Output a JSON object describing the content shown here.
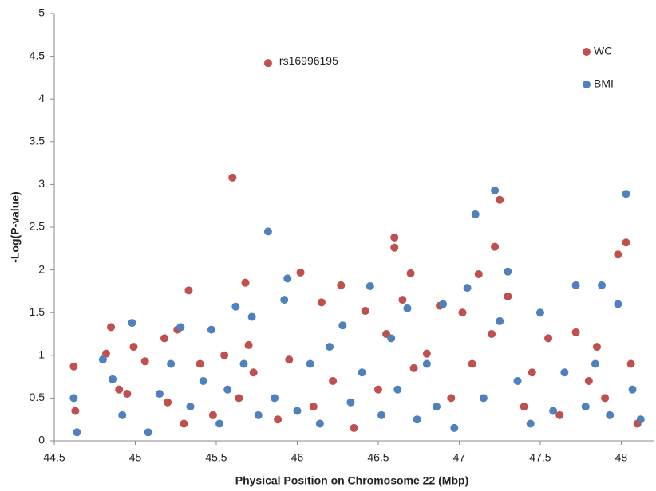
{
  "chart_data": {
    "type": "scatter",
    "x_label": "Physical Position on Chromosome 22 (Mbp)",
    "y_label": "-Log(P-value)",
    "annotation": "rs16996195",
    "xlim": [
      44.5,
      48.2
    ],
    "xticks": [
      44.5,
      45,
      45.5,
      46,
      46.5,
      47,
      47.5,
      48
    ],
    "ylim": [
      0,
      5
    ],
    "yticks": [
      0,
      0.5,
      1,
      1.5,
      2,
      2.5,
      3,
      3.5,
      4,
      4.5,
      5
    ],
    "legend": "upper right",
    "grid": false,
    "series": [
      {
        "name": "WC",
        "color": "#c0504d",
        "x": [
          44.62,
          44.63,
          44.82,
          44.85,
          44.9,
          44.95,
          44.99,
          45.06,
          45.18,
          45.2,
          45.26,
          45.3,
          45.33,
          45.4,
          45.48,
          45.55,
          45.6,
          45.64,
          45.68,
          45.7,
          45.73,
          45.82,
          45.88,
          45.95,
          46.02,
          46.1,
          46.15,
          46.22,
          46.27,
          46.35,
          46.42,
          46.5,
          46.55,
          46.6,
          46.6,
          46.65,
          46.7,
          46.72,
          46.8,
          46.88,
          46.95,
          47.02,
          47.08,
          47.12,
          47.2,
          47.22,
          47.25,
          47.3,
          47.4,
          47.45,
          47.55,
          47.62,
          47.72,
          47.8,
          47.85,
          47.9,
          47.98,
          48.03,
          48.06,
          48.1
        ],
        "values": [
          0.87,
          0.35,
          1.02,
          1.33,
          0.6,
          0.55,
          1.1,
          0.93,
          1.2,
          0.45,
          1.3,
          0.2,
          1.76,
          0.9,
          0.3,
          1.0,
          3.08,
          0.5,
          1.85,
          1.12,
          0.8,
          4.42,
          0.25,
          0.95,
          1.97,
          0.4,
          1.62,
          0.7,
          1.82,
          0.15,
          1.52,
          0.6,
          1.25,
          2.38,
          2.26,
          1.65,
          1.96,
          0.85,
          1.02,
          1.58,
          0.5,
          1.5,
          0.9,
          1.95,
          1.25,
          2.27,
          2.82,
          1.69,
          0.4,
          0.8,
          1.2,
          0.3,
          1.27,
          0.7,
          1.1,
          0.5,
          2.18,
          2.32,
          0.9,
          0.2
        ]
      },
      {
        "name": "BMI",
        "color": "#4f81bd",
        "x": [
          44.62,
          44.64,
          44.8,
          44.86,
          44.92,
          44.98,
          45.08,
          45.15,
          45.22,
          45.28,
          45.34,
          45.42,
          45.47,
          45.52,
          45.57,
          45.62,
          45.67,
          45.72,
          45.76,
          45.82,
          45.86,
          45.92,
          45.94,
          46.0,
          46.08,
          46.14,
          46.2,
          46.28,
          46.33,
          46.4,
          46.45,
          46.52,
          46.58,
          46.62,
          46.68,
          46.74,
          46.8,
          46.86,
          46.9,
          46.97,
          47.05,
          47.1,
          47.15,
          47.22,
          47.25,
          47.3,
          47.36,
          47.44,
          47.5,
          47.58,
          47.65,
          47.72,
          47.78,
          47.84,
          47.88,
          47.93,
          47.98,
          48.03,
          48.07,
          48.12
        ],
        "values": [
          0.5,
          0.1,
          0.95,
          0.72,
          0.3,
          1.38,
          0.1,
          0.55,
          0.9,
          1.33,
          0.4,
          0.7,
          1.3,
          0.2,
          0.6,
          1.57,
          0.9,
          1.45,
          0.3,
          2.45,
          0.5,
          1.65,
          1.9,
          0.35,
          0.9,
          0.2,
          1.1,
          1.35,
          0.45,
          0.8,
          1.81,
          0.3,
          1.2,
          0.6,
          1.55,
          0.25,
          0.9,
          0.4,
          1.6,
          0.15,
          1.79,
          2.65,
          0.5,
          2.93,
          1.4,
          1.98,
          0.7,
          0.2,
          1.5,
          0.35,
          0.8,
          1.82,
          0.4,
          0.9,
          1.82,
          0.3,
          1.6,
          2.89,
          0.6,
          0.25
        ]
      }
    ]
  }
}
